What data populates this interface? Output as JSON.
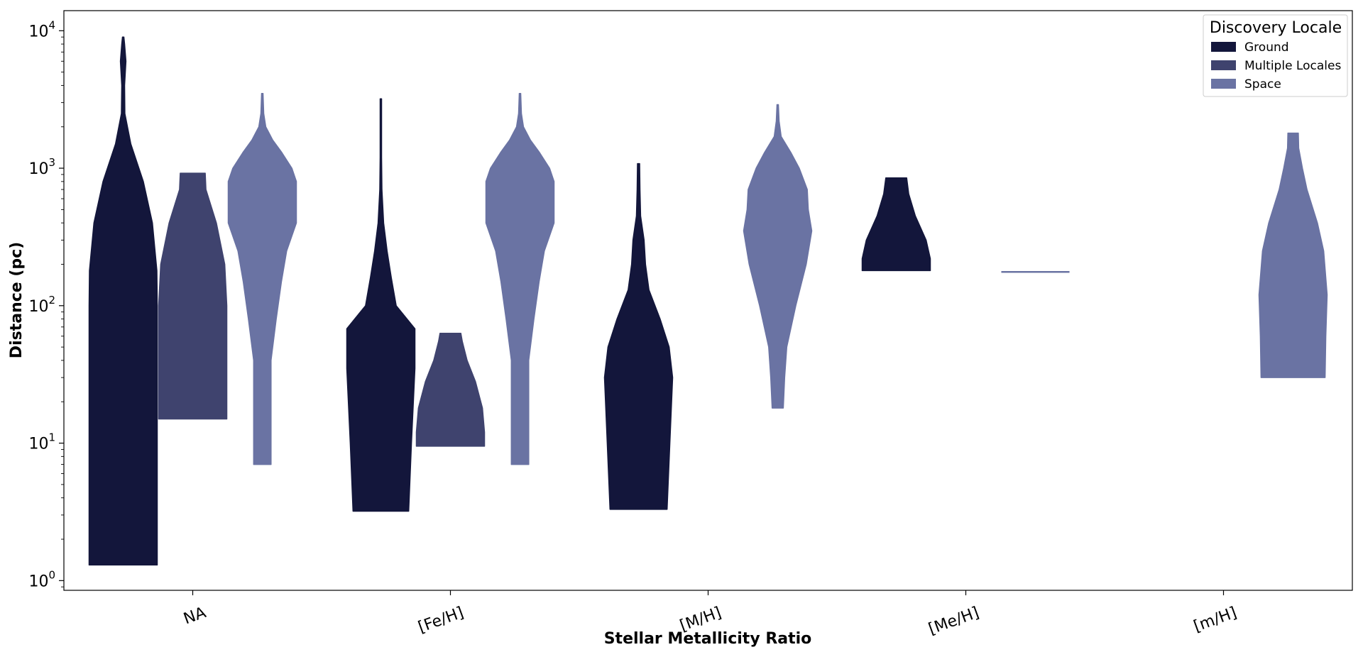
{
  "chart_data": {
    "type": "violin",
    "xlabel": "Stellar Metallicity Ratio",
    "ylabel": "Distance (pc)",
    "yscale": "log",
    "ylim": [
      0.85,
      14000
    ],
    "y_ticks": [
      {
        "value": 1,
        "base": "10",
        "exp": "0"
      },
      {
        "value": 10,
        "base": "10",
        "exp": "1"
      },
      {
        "value": 100,
        "base": "10",
        "exp": "2"
      },
      {
        "value": 1000,
        "base": "10",
        "exp": "3"
      },
      {
        "value": 10000,
        "base": "10",
        "exp": "4"
      }
    ],
    "categories": [
      "NA",
      "[Fe/H]",
      "[M/H]",
      "[Me/H]",
      "[m/H]"
    ],
    "legend": {
      "title": "Discovery Locale",
      "position": "top-right",
      "entries": [
        "Ground",
        "Multiple Locales",
        "Space"
      ]
    },
    "colors": {
      "Ground": "#13163b",
      "Multiple Locales": "#3f436e",
      "Space": "#6a73a3"
    },
    "violins": [
      {
        "category": "NA",
        "series": "Ground",
        "min": 1.3,
        "max": 9000,
        "profile": [
          [
            1.3,
            0.98
          ],
          [
            5,
            0.98
          ],
          [
            20,
            0.98
          ],
          [
            100,
            0.98
          ],
          [
            180,
            0.97
          ],
          [
            400,
            0.84
          ],
          [
            800,
            0.58
          ],
          [
            1500,
            0.22
          ],
          [
            2500,
            0.05
          ],
          [
            4000,
            0.04
          ],
          [
            6000,
            0.08
          ],
          [
            8000,
            0.04
          ],
          [
            9000,
            0.02
          ]
        ]
      },
      {
        "category": "NA",
        "series": "Multiple Locales",
        "min": 15,
        "max": 920,
        "profile": [
          [
            15,
            0.98
          ],
          [
            40,
            0.98
          ],
          [
            100,
            0.98
          ],
          [
            200,
            0.92
          ],
          [
            400,
            0.68
          ],
          [
            700,
            0.38
          ],
          [
            920,
            0.36
          ]
        ]
      },
      {
        "category": "NA",
        "series": "Space",
        "min": 7,
        "max": 3500,
        "profile": [
          [
            7,
            0.25
          ],
          [
            15,
            0.25
          ],
          [
            40,
            0.25
          ],
          [
            80,
            0.4
          ],
          [
            150,
            0.55
          ],
          [
            250,
            0.7
          ],
          [
            400,
            0.98
          ],
          [
            600,
            0.98
          ],
          [
            800,
            0.98
          ],
          [
            1000,
            0.85
          ],
          [
            1300,
            0.56
          ],
          [
            1600,
            0.3
          ],
          [
            2000,
            0.1
          ],
          [
            2500,
            0.04
          ],
          [
            3500,
            0.02
          ]
        ]
      },
      {
        "category": "[Fe/H]",
        "series": "Ground",
        "min": 3.2,
        "max": 3200,
        "profile": [
          [
            3.2,
            0.8
          ],
          [
            10,
            0.88
          ],
          [
            35,
            0.98
          ],
          [
            68,
            0.98
          ],
          [
            100,
            0.44
          ],
          [
            160,
            0.3
          ],
          [
            250,
            0.18
          ],
          [
            400,
            0.08
          ],
          [
            700,
            0.03
          ],
          [
            1200,
            0.02
          ],
          [
            3200,
            0.02
          ]
        ]
      },
      {
        "category": "[Fe/H]",
        "series": "Multiple Locales",
        "min": 9.5,
        "max": 63,
        "profile": [
          [
            9.5,
            0.98
          ],
          [
            12,
            0.98
          ],
          [
            18,
            0.92
          ],
          [
            28,
            0.72
          ],
          [
            40,
            0.48
          ],
          [
            55,
            0.34
          ],
          [
            63,
            0.3
          ]
        ]
      },
      {
        "category": "[Fe/H]",
        "series": "Space",
        "min": 7,
        "max": 3500,
        "profile": [
          [
            7,
            0.25
          ],
          [
            15,
            0.25
          ],
          [
            40,
            0.25
          ],
          [
            80,
            0.4
          ],
          [
            150,
            0.55
          ],
          [
            250,
            0.7
          ],
          [
            400,
            0.98
          ],
          [
            600,
            0.98
          ],
          [
            800,
            0.98
          ],
          [
            1000,
            0.85
          ],
          [
            1300,
            0.56
          ],
          [
            1600,
            0.3
          ],
          [
            2000,
            0.1
          ],
          [
            2500,
            0.04
          ],
          [
            3500,
            0.02
          ]
        ]
      },
      {
        "category": "[M/H]",
        "series": "Ground",
        "min": 3.3,
        "max": 1080,
        "profile": [
          [
            3.3,
            0.82
          ],
          [
            10,
            0.9
          ],
          [
            30,
            0.98
          ],
          [
            50,
            0.88
          ],
          [
            80,
            0.62
          ],
          [
            130,
            0.3
          ],
          [
            200,
            0.2
          ],
          [
            300,
            0.16
          ],
          [
            450,
            0.06
          ],
          [
            700,
            0.04
          ],
          [
            1080,
            0.03
          ]
        ]
      },
      {
        "category": "[M/H]",
        "series": "Space",
        "min": 18,
        "max": 2900,
        "profile": [
          [
            18,
            0.16
          ],
          [
            30,
            0.2
          ],
          [
            50,
            0.26
          ],
          [
            100,
            0.52
          ],
          [
            200,
            0.82
          ],
          [
            350,
            0.98
          ],
          [
            500,
            0.88
          ],
          [
            700,
            0.85
          ],
          [
            1000,
            0.62
          ],
          [
            1300,
            0.38
          ],
          [
            1700,
            0.1
          ],
          [
            2200,
            0.04
          ],
          [
            2900,
            0.02
          ]
        ]
      },
      {
        "category": "[Me/H]",
        "series": "Space",
        "min": 176,
        "max": 176,
        "profile": [
          [
            176,
            0.98
          ]
        ]
      },
      {
        "category": "[Me/H]",
        "series": "Ground",
        "min": 180,
        "max": 850,
        "profile": [
          [
            180,
            0.98
          ],
          [
            220,
            0.98
          ],
          [
            300,
            0.86
          ],
          [
            450,
            0.55
          ],
          [
            650,
            0.36
          ],
          [
            850,
            0.3
          ]
        ]
      },
      {
        "category": "[m/H]",
        "series": "Space",
        "min": 30,
        "max": 1800,
        "profile": [
          [
            30,
            0.92
          ],
          [
            60,
            0.94
          ],
          [
            120,
            0.98
          ],
          [
            250,
            0.88
          ],
          [
            400,
            0.7
          ],
          [
            700,
            0.4
          ],
          [
            1000,
            0.27
          ],
          [
            1400,
            0.16
          ],
          [
            1800,
            0.15
          ]
        ]
      }
    ]
  }
}
